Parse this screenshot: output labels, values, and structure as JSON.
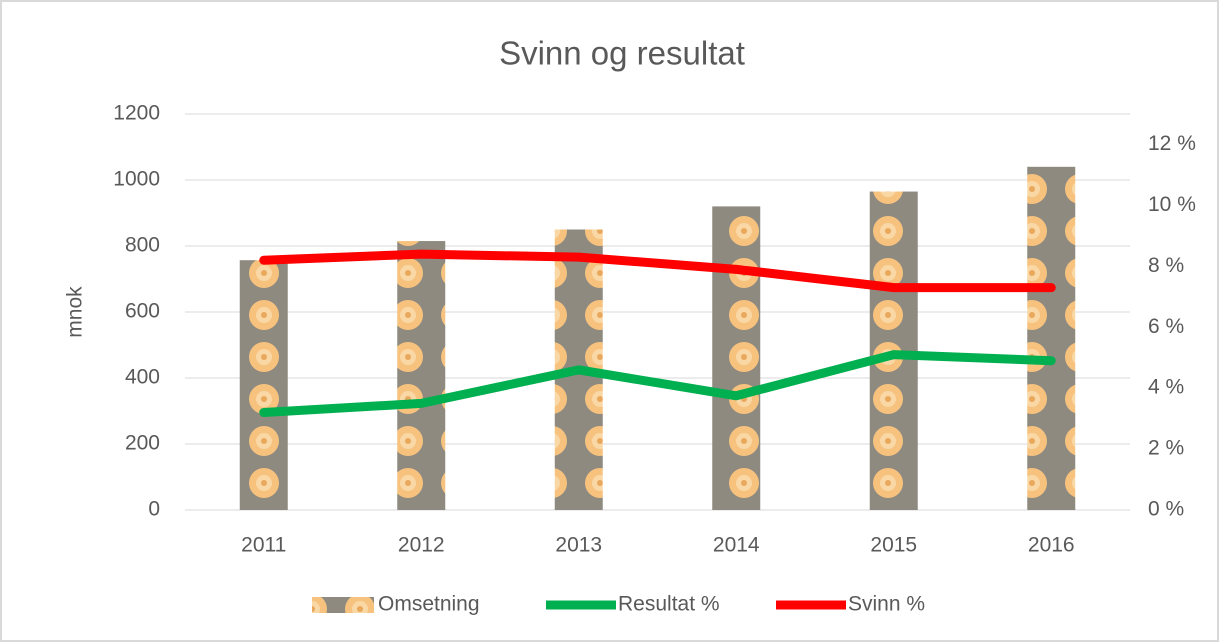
{
  "chart_data": {
    "type": "bar-line",
    "title": "Svinn og resultat",
    "y_label": "mnok",
    "categories": [
      "2011",
      "2012",
      "2013",
      "2014",
      "2015",
      "2016"
    ],
    "series": [
      {
        "name": "Omsetning",
        "type": "bar",
        "color": "#f6c27e",
        "values": [
          757,
          815,
          850,
          920,
          965,
          1040
        ]
      },
      {
        "name": "Resultat %",
        "type": "line",
        "axis": "y2",
        "color": "#00b050",
        "values": [
          3.2,
          3.5,
          4.6,
          3.75,
          5.1,
          4.9
        ]
      },
      {
        "name": "Svinn %",
        "type": "line",
        "axis": "y2",
        "color": "#ff0000",
        "values": [
          8.2,
          8.4,
          8.3,
          7.9,
          7.3,
          7.3
        ]
      }
    ],
    "ylim": [
      0,
      1200
    ],
    "yticks": [
      0,
      200,
      400,
      600,
      800,
      1000,
      1200
    ],
    "y2lim": [
      0,
      13
    ],
    "y2ticks": [
      {
        "value": 0,
        "label": "0 %"
      },
      {
        "value": 2,
        "label": "2 %"
      },
      {
        "value": 4,
        "label": "4 %"
      },
      {
        "value": 6,
        "label": "6 %"
      },
      {
        "value": 8,
        "label": "8 %"
      },
      {
        "value": 10,
        "label": "10 %"
      },
      {
        "value": 12,
        "label": "12 %"
      }
    ],
    "grid": true,
    "legend": "bottom"
  }
}
